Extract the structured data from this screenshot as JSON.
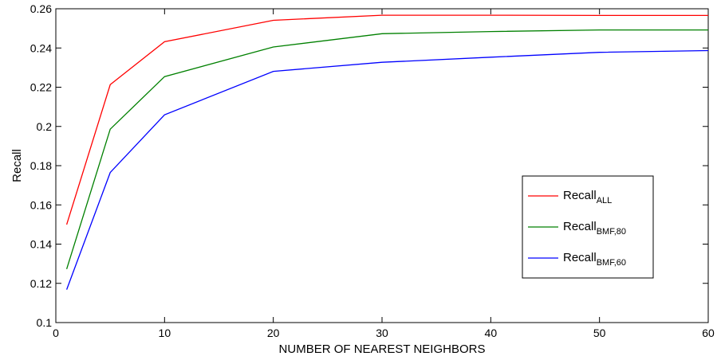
{
  "chart_data": {
    "type": "line",
    "title": "",
    "xlabel": "NUMBER OF NEAREST NEIGHBORS",
    "ylabel": "Recall",
    "xlim": [
      0,
      60
    ],
    "ylim": [
      0.1,
      0.26
    ],
    "xticks": [
      0,
      10,
      20,
      30,
      40,
      50,
      60
    ],
    "xtick_labels": [
      "0",
      "10",
      "20",
      "30",
      "40",
      "50",
      "60"
    ],
    "yticks": [
      0.1,
      0.12,
      0.14,
      0.16,
      0.18,
      0.2,
      0.22,
      0.24,
      0.26
    ],
    "ytick_labels": [
      "0.1",
      "0.12",
      "0.14",
      "0.16",
      "0.18",
      "0.2",
      "0.22",
      "0.24",
      "0.26"
    ],
    "grid": false,
    "legend_position": "right",
    "series": [
      {
        "name": "Recall",
        "subscript": "ALL",
        "color": "#ff0000",
        "x": [
          1,
          5,
          10,
          20,
          30,
          40,
          50,
          60
        ],
        "y": [
          0.15,
          0.2213,
          0.2432,
          0.2541,
          0.2567,
          0.2567,
          0.2566,
          0.2566
        ]
      },
      {
        "name": "Recall",
        "subscript": "BMF,80",
        "color": "#008000",
        "x": [
          1,
          5,
          10,
          20,
          30,
          40,
          50,
          60
        ],
        "y": [
          0.1273,
          0.1986,
          0.2254,
          0.2405,
          0.2473,
          0.2484,
          0.2492,
          0.2492
        ]
      },
      {
        "name": "Recall",
        "subscript": "BMF,60",
        "color": "#0000ff",
        "x": [
          1,
          5,
          10,
          20,
          30,
          40,
          50,
          60
        ],
        "y": [
          0.1168,
          0.1765,
          0.2059,
          0.2281,
          0.2327,
          0.2353,
          0.2378,
          0.2387
        ]
      }
    ]
  }
}
